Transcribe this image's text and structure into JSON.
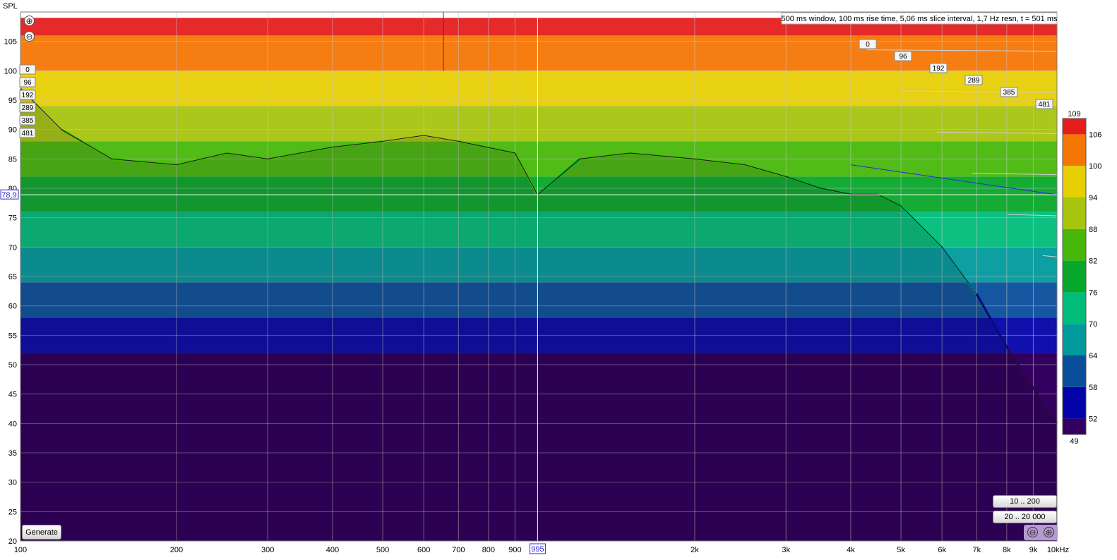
{
  "chart_data": {
    "type": "waterfall",
    "title": "",
    "info_text": "500 ms window, 100 ms rise time, 5,06 ms slice interval, 1,7 Hz resn, t = 501 ms",
    "ylabel": "SPL",
    "xlabel": "",
    "x_scale": "log",
    "xlim": [
      100,
      10000
    ],
    "ylim": [
      20,
      110
    ],
    "x_ticks": [
      {
        "v": 100,
        "label": "100"
      },
      {
        "v": 200,
        "label": "200"
      },
      {
        "v": 300,
        "label": "300"
      },
      {
        "v": 400,
        "label": "400"
      },
      {
        "v": 500,
        "label": "500"
      },
      {
        "v": 600,
        "label": "600"
      },
      {
        "v": 700,
        "label": "700"
      },
      {
        "v": 800,
        "label": "800"
      },
      {
        "v": 900,
        "label": "900"
      },
      {
        "v": 2000,
        "label": "2k"
      },
      {
        "v": 3000,
        "label": "3k"
      },
      {
        "v": 4000,
        "label": "4k"
      },
      {
        "v": 5000,
        "label": "5k"
      },
      {
        "v": 6000,
        "label": "6k"
      },
      {
        "v": 7000,
        "label": "7k"
      },
      {
        "v": 8000,
        "label": "8k"
      },
      {
        "v": 9000,
        "label": "9k"
      },
      {
        "v": 10000,
        "label": "10kHz"
      }
    ],
    "y_ticks": [
      20,
      25,
      30,
      35,
      40,
      45,
      50,
      55,
      60,
      65,
      70,
      75,
      80,
      85,
      90,
      95,
      100,
      105
    ],
    "time_slices_ms": [
      "0",
      "96",
      "192",
      "289",
      "385",
      "481"
    ],
    "cursor": {
      "x_label": "995",
      "y_label": "78,9"
    },
    "colour_scale": {
      "min_label": "49",
      "max_label": "109",
      "tick_labels": [
        "52",
        "58",
        "64",
        "70",
        "76",
        "82",
        "88",
        "94",
        "100",
        "106"
      ],
      "bands": [
        {
          "from": 49,
          "to": 52,
          "color": "#33005f"
        },
        {
          "from": 52,
          "to": 58,
          "color": "#0303a8"
        },
        {
          "from": 58,
          "to": 64,
          "color": "#0a4e9c"
        },
        {
          "from": 64,
          "to": 70,
          "color": "#009a9c"
        },
        {
          "from": 70,
          "to": 76,
          "color": "#00bd7a"
        },
        {
          "from": 76,
          "to": 82,
          "color": "#07a829"
        },
        {
          "from": 82,
          "to": 88,
          "color": "#48b70b"
        },
        {
          "from": 88,
          "to": 94,
          "color": "#a7c40f"
        },
        {
          "from": 94,
          "to": 100,
          "color": "#e6cf05"
        },
        {
          "from": 100,
          "to": 106,
          "color": "#f47605"
        },
        {
          "from": 106,
          "to": 109,
          "color": "#e51d1d"
        }
      ]
    },
    "front_slice": {
      "label": "0 ms",
      "points": [
        [
          100,
          97
        ],
        [
          120,
          90
        ],
        [
          150,
          85
        ],
        [
          200,
          84
        ],
        [
          250,
          86
        ],
        [
          300,
          85
        ],
        [
          400,
          87
        ],
        [
          500,
          88
        ],
        [
          600,
          89
        ],
        [
          700,
          88
        ],
        [
          900,
          86
        ],
        [
          995,
          78.9
        ],
        [
          1200,
          85
        ],
        [
          1500,
          86
        ],
        [
          2000,
          85
        ],
        [
          2500,
          84
        ],
        [
          3000,
          82
        ],
        [
          3500,
          80
        ],
        [
          4000,
          79
        ],
        [
          4500,
          79
        ],
        [
          5000,
          77
        ],
        [
          6000,
          70
        ],
        [
          7000,
          62
        ],
        [
          8000,
          53
        ],
        [
          9000,
          46
        ],
        [
          10000,
          40
        ]
      ]
    },
    "grid": true
  },
  "controls": {
    "generate_label": "Generate",
    "range_low_label": "10 .. 200",
    "range_full_label": "20 .. 20 000",
    "zoom_in_symbol": "⊕",
    "zoom_out_symbol": "⊖"
  }
}
